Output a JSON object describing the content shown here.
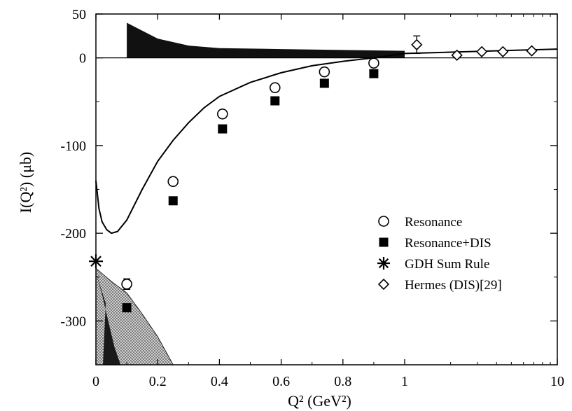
{
  "chart_data": {
    "type": "scatter",
    "xlabel": "Q² (GeV²)",
    "ylabel": "I(Q²) (μb)",
    "x_scale": "linear 0–1, logarithmic 1–10",
    "xlim": [
      0,
      10
    ],
    "ylim": [
      -350,
      50
    ],
    "x_ticks": [
      {
        "value": 0,
        "label": "0"
      },
      {
        "value": 0.2,
        "label": "0.2"
      },
      {
        "value": 0.4,
        "label": "0.4"
      },
      {
        "value": 0.6,
        "label": "0.6"
      },
      {
        "value": 0.8,
        "label": "0.8"
      },
      {
        "value": 1,
        "label": "1"
      },
      {
        "value": 10,
        "label": "10"
      }
    ],
    "y_ticks": [
      {
        "value": 50,
        "label": "50"
      },
      {
        "value": 0,
        "label": "0"
      },
      {
        "value": -100,
        "label": "-100"
      },
      {
        "value": -200,
        "label": "-200"
      },
      {
        "value": -300,
        "label": "-300"
      }
    ],
    "legend_position": "right",
    "series": [
      {
        "name": "Resonance",
        "marker": "open-circle",
        "color": "#000000",
        "points": [
          [
            0.1,
            -258
          ],
          [
            0.25,
            -141
          ],
          [
            0.41,
            -64
          ],
          [
            0.58,
            -34
          ],
          [
            0.74,
            -16
          ],
          [
            0.9,
            -6
          ]
        ],
        "errors": [
          6,
          0,
          0,
          0,
          0,
          0
        ]
      },
      {
        "name": "Resonance+DIS",
        "marker": "filled-square",
        "color": "#000000",
        "points": [
          [
            0.1,
            -285
          ],
          [
            0.25,
            -163
          ],
          [
            0.41,
            -81
          ],
          [
            0.58,
            -49
          ],
          [
            0.74,
            -29
          ],
          [
            0.9,
            -18
          ]
        ]
      },
      {
        "name": "GDH Sum Rule",
        "marker": "asterisk",
        "color": "#000000",
        "points": [
          [
            0,
            -232
          ]
        ]
      },
      {
        "name": "Hermes (DIS)[29]",
        "marker": "open-diamond",
        "color": "#000000",
        "points": [
          [
            1.2,
            15
          ],
          [
            2.2,
            3
          ],
          [
            3.2,
            7
          ],
          [
            4.4,
            7
          ],
          [
            6.8,
            8
          ]
        ],
        "errors": [
          10,
          0,
          0,
          0,
          0
        ]
      }
    ],
    "curve": {
      "description": "model curve",
      "points": [
        [
          0,
          -140
        ],
        [
          0.01,
          -172
        ],
        [
          0.02,
          -187
        ],
        [
          0.035,
          -196
        ],
        [
          0.05,
          -200
        ],
        [
          0.07,
          -198
        ],
        [
          0.1,
          -185
        ],
        [
          0.15,
          -150
        ],
        [
          0.2,
          -118
        ],
        [
          0.25,
          -94
        ],
        [
          0.3,
          -74
        ],
        [
          0.35,
          -57
        ],
        [
          0.4,
          -44
        ],
        [
          0.5,
          -28
        ],
        [
          0.6,
          -17
        ],
        [
          0.7,
          -9
        ],
        [
          0.8,
          -4
        ],
        [
          0.9,
          0
        ],
        [
          1.0,
          5
        ],
        [
          10,
          10
        ]
      ]
    },
    "bands": {
      "top_filled": [
        [
          0.1,
          40
        ],
        [
          0.2,
          22
        ],
        [
          0.3,
          14
        ],
        [
          0.4,
          11
        ],
        [
          0.6,
          10
        ],
        [
          0.8,
          9
        ],
        [
          1.0,
          8
        ]
      ],
      "bottom_hatched_outer": [
        [
          0,
          -240
        ],
        [
          0.05,
          -255
        ],
        [
          0.1,
          -268
        ],
        [
          0.15,
          -292
        ],
        [
          0.2,
          -318
        ],
        [
          0.25,
          -350
        ]
      ],
      "bottom_dark_inner": [
        [
          0,
          -245
        ],
        [
          0.02,
          -270
        ],
        [
          0.04,
          -300
        ],
        [
          0.06,
          -330
        ],
        [
          0.08,
          -350
        ]
      ]
    }
  }
}
